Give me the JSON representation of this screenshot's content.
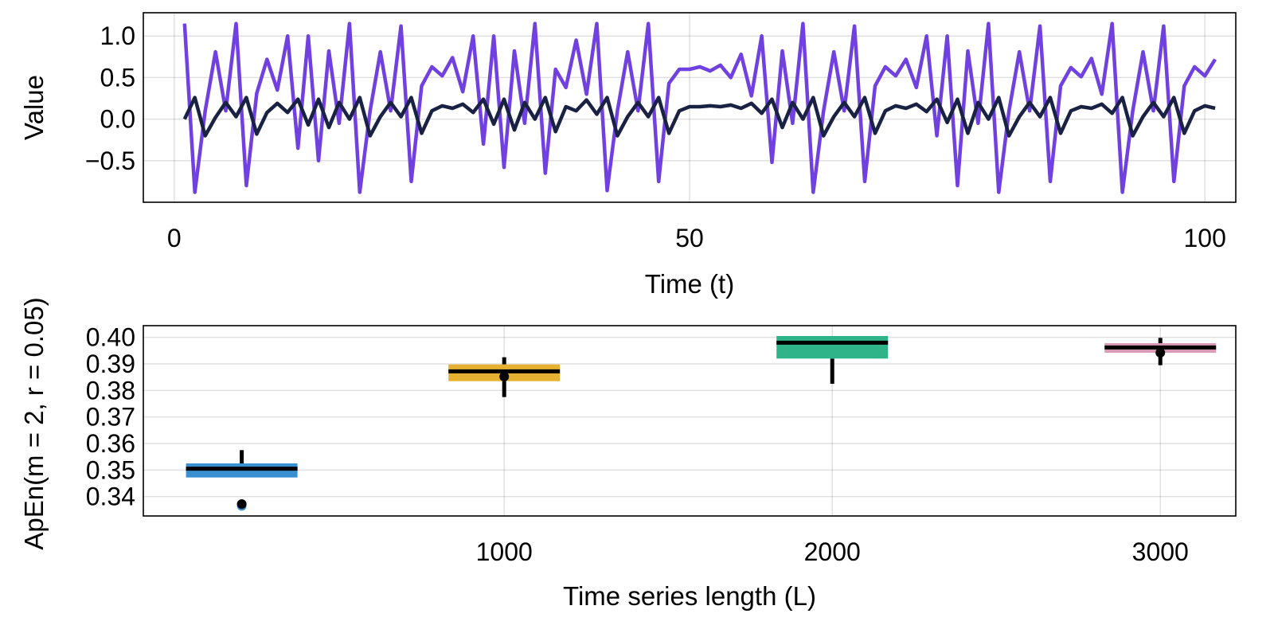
{
  "chart_data": [
    {
      "type": "line",
      "xlabel": "Time (t)",
      "ylabel": "Value",
      "xlim": [
        -3,
        103
      ],
      "ylim": [
        -1.0,
        1.28
      ],
      "xticks": [
        0,
        50,
        100
      ],
      "xtick_labels": [
        "0",
        "50",
        "100"
      ],
      "yticks": [
        1.0,
        0.5,
        0.0,
        -0.5
      ],
      "ytick_labels": [
        "1.0",
        "0.5",
        "0.0",
        "−0.5"
      ],
      "grid": true,
      "series": [
        {
          "color": "#7040e0",
          "x": [
            1,
            2,
            3,
            4,
            5,
            6,
            7,
            8,
            9,
            10,
            11,
            12,
            13,
            14,
            15,
            16,
            17,
            18,
            19,
            20,
            21,
            22,
            23,
            24,
            25,
            26,
            27,
            28,
            29,
            30,
            31,
            32,
            33,
            34,
            35,
            36,
            37,
            38,
            39,
            40,
            41,
            42,
            43,
            44,
            45,
            46,
            47,
            48,
            49,
            50,
            51,
            52,
            53,
            54,
            55,
            56,
            57,
            58,
            59,
            60,
            61,
            62,
            63,
            64,
            65,
            66,
            67,
            68,
            69,
            70,
            71,
            72,
            73,
            74,
            75,
            76,
            77,
            78,
            79,
            80,
            81,
            82,
            83,
            84,
            85,
            86,
            87,
            88,
            89,
            90,
            91,
            92,
            93,
            94,
            95,
            96,
            97,
            98,
            99,
            100,
            101
          ],
          "values": [
            1.15,
            -0.88,
            0.1,
            0.81,
            0.1,
            1.15,
            -0.8,
            0.31,
            0.72,
            0.35,
            1.0,
            -0.35,
            1.0,
            -0.5,
            0.82,
            -0.05,
            1.15,
            -0.88,
            0.1,
            0.81,
            0.1,
            1.12,
            -0.75,
            0.4,
            0.63,
            0.52,
            0.74,
            0.33,
            1.0,
            -0.3,
            1.0,
            -0.58,
            0.82,
            -0.05,
            1.15,
            -0.65,
            0.6,
            0.38,
            0.95,
            0.3,
            1.15,
            -0.86,
            0.1,
            0.81,
            0.1,
            1.15,
            -0.75,
            0.43,
            0.6,
            0.6,
            0.63,
            0.58,
            0.65,
            0.5,
            0.78,
            0.28,
            1.0,
            -0.52,
            0.82,
            -0.05,
            1.15,
            -0.88,
            0.1,
            0.81,
            0.1,
            1.12,
            -0.75,
            0.4,
            0.63,
            0.52,
            0.72,
            0.38,
            1.0,
            -0.2,
            1.0,
            -0.8,
            0.82,
            -0.05,
            1.15,
            -0.88,
            0.1,
            0.81,
            0.1,
            1.12,
            -0.75,
            0.4,
            0.62,
            0.51,
            0.73,
            0.3,
            1.15,
            -0.88,
            0.1,
            0.81,
            0.1,
            1.12,
            -0.75,
            0.4,
            0.63,
            0.52,
            0.72
          ]
        },
        {
          "color": "#1a2244",
          "x": [
            1,
            2,
            3,
            4,
            5,
            6,
            7,
            8,
            9,
            10,
            11,
            12,
            13,
            14,
            15,
            16,
            17,
            18,
            19,
            20,
            21,
            22,
            23,
            24,
            25,
            26,
            27,
            28,
            29,
            30,
            31,
            32,
            33,
            34,
            35,
            36,
            37,
            38,
            39,
            40,
            41,
            42,
            43,
            44,
            45,
            46,
            47,
            48,
            49,
            50,
            51,
            52,
            53,
            54,
            55,
            56,
            57,
            58,
            59,
            60,
            61,
            62,
            63,
            64,
            65,
            66,
            67,
            68,
            69,
            70,
            71,
            72,
            73,
            74,
            75,
            76,
            77,
            78,
            79,
            80,
            81,
            82,
            83,
            84,
            85,
            86,
            87,
            88,
            89,
            90,
            91,
            92,
            93,
            94,
            95,
            96,
            97,
            98,
            99,
            100,
            101
          ],
          "values": [
            0.0,
            0.26,
            -0.2,
            0.02,
            0.2,
            0.03,
            0.26,
            -0.18,
            0.08,
            0.19,
            0.08,
            0.24,
            -0.07,
            0.24,
            -0.1,
            0.2,
            0.0,
            0.26,
            -0.2,
            0.03,
            0.2,
            0.03,
            0.26,
            -0.17,
            0.1,
            0.16,
            0.13,
            0.18,
            0.08,
            0.24,
            -0.06,
            0.24,
            -0.13,
            0.2,
            0.0,
            0.26,
            -0.15,
            0.15,
            0.1,
            0.23,
            0.06,
            0.26,
            -0.2,
            0.03,
            0.2,
            0.03,
            0.26,
            -0.17,
            0.1,
            0.15,
            0.15,
            0.16,
            0.15,
            0.17,
            0.13,
            0.19,
            0.07,
            0.24,
            -0.1,
            0.2,
            0.0,
            0.26,
            -0.2,
            0.03,
            0.2,
            0.03,
            0.26,
            -0.17,
            0.1,
            0.16,
            0.13,
            0.18,
            0.09,
            0.24,
            -0.04,
            0.24,
            -0.17,
            0.2,
            0.0,
            0.26,
            -0.2,
            0.03,
            0.2,
            0.03,
            0.26,
            -0.17,
            0.1,
            0.15,
            0.13,
            0.18,
            0.07,
            0.26,
            -0.2,
            0.03,
            0.2,
            0.03,
            0.26,
            -0.17,
            0.1,
            0.16,
            0.13
          ]
        }
      ]
    },
    {
      "type": "box",
      "xlabel": "Time series length (L)",
      "ylabel": "ApEn(m = 2, r = 0.05)",
      "xlim": [
        -100,
        3230
      ],
      "ylim": [
        0.3327,
        0.4044
      ],
      "xticks": [
        1000,
        2000,
        3000
      ],
      "xtick_labels": [
        "1000",
        "2000",
        "3000"
      ],
      "yticks": [
        0.4,
        0.39,
        0.38,
        0.37,
        0.36,
        0.35,
        0.34
      ],
      "ytick_labels": [
        "0.40",
        "0.39",
        "0.38",
        "0.37",
        "0.36",
        "0.35",
        "0.34"
      ],
      "grid": true,
      "boxes": [
        {
          "x": 200,
          "q1": 0.3472,
          "median": 0.3505,
          "q3": 0.3525,
          "whisker_low": 0.3472,
          "whisker_high": 0.3575,
          "mean": 0.3372,
          "outliers": [
            0.3365
          ],
          "color": "#3a8fd0"
        },
        {
          "x": 1000,
          "q1": 0.3835,
          "median": 0.3872,
          "q3": 0.3898,
          "whisker_low": 0.3775,
          "whisker_high": 0.3925,
          "mean": 0.3852,
          "outliers": [],
          "color": "#e6b030"
        },
        {
          "x": 2000,
          "q1": 0.392,
          "median": 0.398,
          "q3": 0.4005,
          "whisker_low": 0.3825,
          "whisker_high": 0.4005,
          "mean": null,
          "outliers": [],
          "color": "#2fb389"
        },
        {
          "x": 3000,
          "q1": 0.3942,
          "median": 0.3962,
          "q3": 0.3978,
          "whisker_low": 0.3895,
          "whisker_high": 0.3998,
          "mean": 0.3942,
          "outliers": [],
          "color": "#d89ab6"
        }
      ]
    }
  ]
}
